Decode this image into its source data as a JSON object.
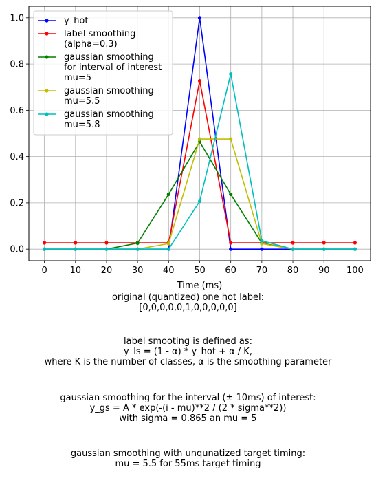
{
  "chart_data": {
    "type": "line",
    "xlabel": "Time (ms)",
    "ylabel": "",
    "title": "",
    "x": [
      0,
      10,
      20,
      30,
      40,
      50,
      60,
      70,
      80,
      90,
      100
    ],
    "xticks": [
      "0",
      "10",
      "20",
      "30",
      "40",
      "50",
      "60",
      "70",
      "80",
      "90",
      "100"
    ],
    "yticks": [
      "0.0",
      "0.2",
      "0.4",
      "0.6",
      "0.8",
      "1.0"
    ],
    "xlim": [
      -5,
      105
    ],
    "ylim": [
      -0.05,
      1.05
    ],
    "grid": true,
    "legend_position": "upper-left",
    "series": [
      {
        "name": "y_hot",
        "color": "#0000ff",
        "values": [
          0,
          0,
          0,
          0,
          0,
          1.0,
          0,
          0,
          0,
          0,
          0
        ]
      },
      {
        "name": "label smoothing\n(alpha=0.3)",
        "color": "#ff0000",
        "values": [
          0.0273,
          0.0273,
          0.0273,
          0.0273,
          0.0273,
          0.7273,
          0.0273,
          0.0273,
          0.0273,
          0.0273,
          0.0273
        ]
      },
      {
        "name": "gaussian smoothing\nfor interval of interest\nmu=5",
        "color": "#008000",
        "values": [
          0,
          0,
          0,
          0.026,
          0.237,
          0.464,
          0.237,
          0.026,
          0,
          0,
          0
        ]
      },
      {
        "name": "gaussian smoothing\nmu=5.5",
        "color": "#bfbf00",
        "values": [
          0,
          0,
          0,
          0,
          0.024,
          0.476,
          0.476,
          0.024,
          0,
          0,
          0
        ]
      },
      {
        "name": "gaussian smoothing\nmu=5.8",
        "color": "#00bfbf",
        "values": [
          0,
          0,
          0,
          0,
          0,
          0.207,
          0.757,
          0.036,
          0,
          0,
          0
        ]
      }
    ]
  },
  "captions": {
    "line1": "original (quantized) one hot label:",
    "line2": "[0,0,0,0,0,1,0,0,0,0,0]",
    "line3": "label smooting is defined as:",
    "line4": "y_ls = (1 - α) * y_hot + α / K,",
    "line5": "where K is the number of classes, α is the smoothing parameter",
    "line6": "gaussian smoothing for the interval (± 10ms) of interest:",
    "line7": "y_gs = A * exp(-(i - mu)**2 / (2 * sigma**2))",
    "line8": "with sigma = 0.865 an mu = 5",
    "line9": "gaussian smoothing with unqunatized target timing:",
    "line10": "mu = 5.5 for 55ms target timing"
  }
}
